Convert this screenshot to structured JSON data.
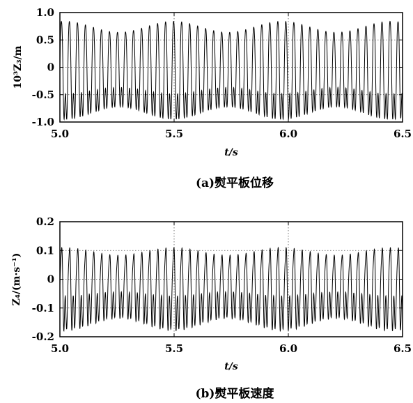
{
  "chart_data": [
    {
      "type": "line",
      "title": "",
      "caption": "(a)熨平板位移",
      "xlabel": "t/s",
      "ylabel": "10³Z₃/m",
      "xlim": [
        5.0,
        6.5
      ],
      "ylim": [
        -1.0,
        1.0
      ],
      "xticks": [
        5.0,
        5.5,
        6.0,
        6.5
      ],
      "xtick_labels": [
        "5.0",
        "5.5",
        "6.0",
        "6.5"
      ],
      "yticks": [
        -1.0,
        -0.5,
        0,
        0.5,
        1.0
      ],
      "ytick_labels": [
        "-1.0",
        "-0.5",
        "0",
        "0.5",
        "1.0"
      ],
      "grid": "dotted",
      "series": [
        {
          "frequency_hz": 28.5,
          "peak_max": 0.84,
          "trough_min": -0.95,
          "line_color": "#000000"
        }
      ]
    },
    {
      "type": "line",
      "title": "",
      "caption": "(b)熨平板速度",
      "xlabel": "t/s",
      "ylabel": "Z₄/(m·s⁻¹)",
      "xlim": [
        5.0,
        6.5
      ],
      "ylim": [
        -0.2,
        0.2
      ],
      "xticks": [
        5.0,
        5.5,
        6.0,
        6.5
      ],
      "xtick_labels": [
        "5.0",
        "5.5",
        "6.0",
        "6.5"
      ],
      "yticks": [
        -0.2,
        -0.1,
        0,
        0.1,
        0.2
      ],
      "ytick_labels": [
        "-0.2",
        "-0.1",
        "0",
        "0.1",
        "0.2"
      ],
      "grid": "dotted",
      "series": [
        {
          "frequency_hz": 28.5,
          "peak_max": 0.11,
          "trough_min": -0.18,
          "line_color": "#000000"
        }
      ]
    }
  ]
}
